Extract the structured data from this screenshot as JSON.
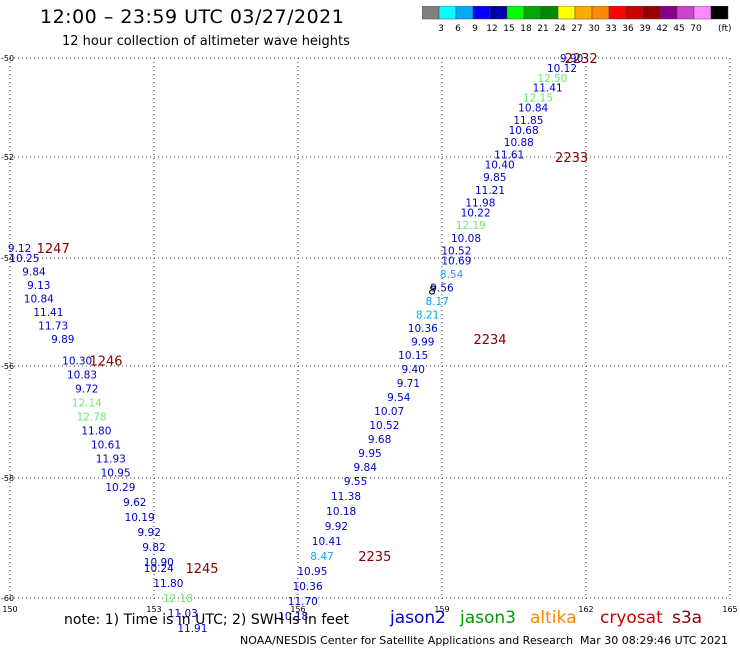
{
  "header": {
    "title": "12:00 – 23:59 UTC 03/27/2021",
    "subtitle": "12 hour collection of altimeter wave heights"
  },
  "color_scale": {
    "colors": [
      "#808080",
      "#00ffff",
      "#00aaff",
      "#0000ff",
      "#0000aa",
      "#00ff00",
      "#00aa00",
      "#008800",
      "#ffff00",
      "#ffaa00",
      "#ff8800",
      "#ff0000",
      "#cc0000",
      "#990000",
      "#880088",
      "#cc44cc",
      "#ff88ff",
      "#000000"
    ],
    "labels": [
      "3",
      "6",
      "9",
      "12",
      "15",
      "18",
      "21",
      "24",
      "27",
      "30",
      "33",
      "36",
      "39",
      "42",
      "45",
      "70"
    ],
    "unit": "(ft)"
  },
  "chart_data": {
    "type": "scatter",
    "x_ticks": [
      "150",
      "153",
      "156",
      "159",
      "162",
      "165"
    ],
    "y_ticks": [
      "-50",
      "-52",
      "-54",
      "-56",
      "-58",
      "-60"
    ],
    "xlim": [
      150,
      165
    ],
    "ylim": [
      -60,
      -50
    ],
    "time_labels": [
      {
        "text": "2232",
        "lon": 161.9,
        "lat": -50.0
      },
      {
        "text": "2233",
        "lon": 161.7,
        "lat": -52.0
      },
      {
        "text": "2234",
        "lon": 160.0,
        "lat": -55.5
      },
      {
        "text": "2235",
        "lon": 157.6,
        "lat": -59.3
      },
      {
        "text": "1247",
        "lon": 150.9,
        "lat": -53.8
      },
      {
        "text": "1246",
        "lon": 152.0,
        "lat": -55.9
      },
      {
        "text": "1245",
        "lon": 154.0,
        "lat": -59.5
      }
    ],
    "series": [
      {
        "points": [
          {
            "text": "9.90",
            "lon": 161.7,
            "lat": -50.0,
            "c": "#0000cc"
          },
          {
            "text": "10.12",
            "lon": 161.5,
            "lat": -50.2,
            "c": "#0000cc"
          },
          {
            "text": "12.50",
            "lon": 161.3,
            "lat": -50.4,
            "c": "#66ee66"
          },
          {
            "text": "11.41",
            "lon": 161.2,
            "lat": -50.6,
            "c": "#0000cc"
          },
          {
            "text": "12.15",
            "lon": 161.0,
            "lat": -50.8,
            "c": "#66ee66"
          },
          {
            "text": "10.84",
            "lon": 160.9,
            "lat": -51.0,
            "c": "#0000cc"
          },
          {
            "text": "11.85",
            "lon": 160.8,
            "lat": -51.25,
            "c": "#0000cc"
          },
          {
            "text": "10.68",
            "lon": 160.7,
            "lat": -51.45,
            "c": "#0000cc"
          },
          {
            "text": "10.88",
            "lon": 160.6,
            "lat": -51.7,
            "c": "#0000cc"
          },
          {
            "text": "11.61",
            "lon": 160.4,
            "lat": -51.95,
            "c": "#0000cc"
          },
          {
            "text": "10.40",
            "lon": 160.2,
            "lat": -52.15,
            "c": "#0000cc"
          },
          {
            "text": "9.85",
            "lon": 160.1,
            "lat": -52.4,
            "c": "#0000cc"
          },
          {
            "text": "11.21",
            "lon": 160.0,
            "lat": -52.65,
            "c": "#0000cc"
          },
          {
            "text": "11.98",
            "lon": 159.8,
            "lat": -52.9,
            "c": "#0000cc"
          },
          {
            "text": "10.22",
            "lon": 159.7,
            "lat": -53.1,
            "c": "#0000cc"
          },
          {
            "text": "12.19",
            "lon": 159.6,
            "lat": -53.35,
            "c": "#66ee66"
          },
          {
            "text": "10.08",
            "lon": 159.5,
            "lat": -53.6,
            "c": "#0000cc"
          },
          {
            "text": "10.52",
            "lon": 159.3,
            "lat": -53.85,
            "c": "#0000cc"
          },
          {
            "text": "10.69",
            "lon": 159.3,
            "lat": -54.05,
            "c": "#0000cc"
          },
          {
            "text": "8.54",
            "lon": 159.2,
            "lat": -54.3,
            "c": "#00aaff"
          },
          {
            "text": "9.56",
            "lon": 159.0,
            "lat": -54.55,
            "c": "#0000cc"
          },
          {
            "text": "8.17",
            "lon": 158.9,
            "lat": -54.8,
            "c": "#00aaff"
          },
          {
            "text": "8.21",
            "lon": 158.7,
            "lat": -55.05,
            "c": "#00aaff"
          },
          {
            "text": "10.36",
            "lon": 158.6,
            "lat": -55.3,
            "c": "#0000cc"
          },
          {
            "text": "9.99",
            "lon": 158.6,
            "lat": -55.55,
            "c": "#0000cc"
          },
          {
            "text": "10.15",
            "lon": 158.4,
            "lat": -55.8,
            "c": "#0000cc"
          },
          {
            "text": "9.40",
            "lon": 158.4,
            "lat": -56.05,
            "c": "#0000cc"
          },
          {
            "text": "9.71",
            "lon": 158.3,
            "lat": -56.3,
            "c": "#0000cc"
          },
          {
            "text": "9.54",
            "lon": 158.1,
            "lat": -56.55,
            "c": "#0000cc"
          },
          {
            "text": "10.07",
            "lon": 157.9,
            "lat": -56.8,
            "c": "#0000cc"
          },
          {
            "text": "10.52",
            "lon": 157.8,
            "lat": -57.05,
            "c": "#0000cc"
          },
          {
            "text": "9.68",
            "lon": 157.7,
            "lat": -57.3,
            "c": "#0000cc"
          },
          {
            "text": "9.95",
            "lon": 157.5,
            "lat": -57.55,
            "c": "#0000cc"
          },
          {
            "text": "9.84",
            "lon": 157.4,
            "lat": -57.8,
            "c": "#0000cc"
          },
          {
            "text": "9.55",
            "lon": 157.2,
            "lat": -58.05,
            "c": "#0000cc"
          },
          {
            "text": "11.38",
            "lon": 157.0,
            "lat": -58.3,
            "c": "#0000cc"
          },
          {
            "text": "10.18",
            "lon": 156.9,
            "lat": -58.55,
            "c": "#0000cc"
          },
          {
            "text": "9.92",
            "lon": 156.8,
            "lat": -58.8,
            "c": "#0000cc"
          },
          {
            "text": "10.41",
            "lon": 156.6,
            "lat": -59.05,
            "c": "#0000cc"
          },
          {
            "text": "8.47",
            "lon": 156.5,
            "lat": -59.3,
            "c": "#00aaff"
          },
          {
            "text": "10.95",
            "lon": 156.3,
            "lat": -59.55,
            "c": "#0000cc"
          },
          {
            "text": "10.36",
            "lon": 156.2,
            "lat": -59.8,
            "c": "#0000cc"
          },
          {
            "text": "11.70",
            "lon": 156.1,
            "lat": -60.05,
            "c": "#0000cc"
          },
          {
            "text": "10.18",
            "lon": 155.9,
            "lat": -60.3,
            "c": "#0000cc"
          }
        ]
      },
      {
        "points": [
          {
            "text": "9.12",
            "lon": 150.2,
            "lat": -53.8,
            "c": "#0000cc"
          },
          {
            "text": "10.25",
            "lon": 150.3,
            "lat": -54.0,
            "c": "#0000cc"
          },
          {
            "text": "9.84",
            "lon": 150.5,
            "lat": -54.25,
            "c": "#0000cc"
          },
          {
            "text": "9.13",
            "lon": 150.6,
            "lat": -54.5,
            "c": "#0000cc"
          },
          {
            "text": "10.84",
            "lon": 150.6,
            "lat": -54.75,
            "c": "#0000cc"
          },
          {
            "text": "11.41",
            "lon": 150.8,
            "lat": -55.0,
            "c": "#0000cc"
          },
          {
            "text": "11.73",
            "lon": 150.9,
            "lat": -55.25,
            "c": "#0000cc"
          },
          {
            "text": "9.89",
            "lon": 151.1,
            "lat": -55.5,
            "c": "#0000cc"
          },
          {
            "text": "10.30",
            "lon": 151.4,
            "lat": -55.9,
            "c": "#0000cc"
          },
          {
            "text": "10.83",
            "lon": 151.5,
            "lat": -56.15,
            "c": "#0000cc"
          },
          {
            "text": "9.72",
            "lon": 151.6,
            "lat": -56.4,
            "c": "#0000cc"
          },
          {
            "text": "12.14",
            "lon": 151.6,
            "lat": -56.65,
            "c": "#66ee66"
          },
          {
            "text": "12.78",
            "lon": 151.7,
            "lat": -56.9,
            "c": "#66ee66"
          },
          {
            "text": "11.80",
            "lon": 151.8,
            "lat": -57.15,
            "c": "#0000cc"
          },
          {
            "text": "10.61",
            "lon": 152.0,
            "lat": -57.4,
            "c": "#0000cc"
          },
          {
            "text": "11.93",
            "lon": 152.1,
            "lat": -57.65,
            "c": "#0000cc"
          },
          {
            "text": "10.95",
            "lon": 152.2,
            "lat": -57.9,
            "c": "#0000cc"
          },
          {
            "text": "10.29",
            "lon": 152.3,
            "lat": -58.15,
            "c": "#0000cc"
          },
          {
            "text": "9.62",
            "lon": 152.6,
            "lat": -58.4,
            "c": "#0000cc"
          },
          {
            "text": "10.19",
            "lon": 152.7,
            "lat": -58.65,
            "c": "#0000cc"
          },
          {
            "text": "9.92",
            "lon": 152.9,
            "lat": -58.9,
            "c": "#0000cc"
          },
          {
            "text": "9.82",
            "lon": 153.0,
            "lat": -59.15,
            "c": "#0000cc"
          },
          {
            "text": "10.90",
            "lon": 153.1,
            "lat": -59.4,
            "c": "#0000cc"
          },
          {
            "text": "10.24",
            "lon": 153.1,
            "lat": -59.5,
            "c": "#0000cc"
          },
          {
            "text": "11.80",
            "lon": 153.3,
            "lat": -59.75,
            "c": "#0000cc"
          },
          {
            "text": "12.18",
            "lon": 153.5,
            "lat": -60.0,
            "c": "#66ee66"
          },
          {
            "text": "11.03",
            "lon": 153.6,
            "lat": -60.25,
            "c": "#0000cc"
          },
          {
            "text": "11.91",
            "lon": 153.8,
            "lat": -60.5,
            "c": "#0000cc"
          }
        ]
      }
    ],
    "marker": {
      "text": "8",
      "lon": 158.8,
      "lat": -54.6
    }
  },
  "footer": {
    "note": "note:  1) Time is in UTC;  2) SWH is in feet",
    "satellites": [
      {
        "name": "jason2",
        "color": "#0000dd"
      },
      {
        "name": "jason3",
        "color": "#009900"
      },
      {
        "name": "altika",
        "color": "#ff8800"
      },
      {
        "name": "cryosat",
        "color": "#cc0000"
      },
      {
        "name": "s3a",
        "color": "#880000"
      }
    ],
    "credit": "NOAA/NESDIS Center for Satellite Applications and Research",
    "timestamp": "Mar 30 08:29:46 UTC 2021"
  }
}
